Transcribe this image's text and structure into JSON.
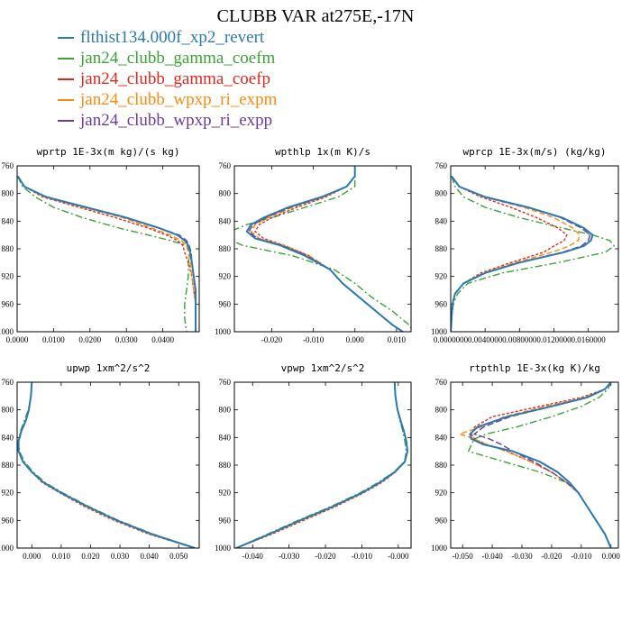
{
  "title": "CLUBB VAR at275E,-17N",
  "legend": [
    {
      "label": "flthist134.000f_xp2_revert",
      "color": "#2a7ab0",
      "dash": ""
    },
    {
      "label": "jan24_clubb_gamma_coefm",
      "color": "#3aa334",
      "dash": "8 3 2 3"
    },
    {
      "label": "jan24_clubb_gamma_coefp",
      "color": "#e2261f",
      "dash": "3 2"
    },
    {
      "label": "jan24_clubb_wpxp_ri_expm",
      "color": "#fb8a10",
      "dash": "6 3"
    },
    {
      "label": "jan24_clubb_wpxp_ri_expp",
      "color": "#6a3d9a",
      "dash": "7 3"
    }
  ],
  "chart_data": [
    {
      "type": "line",
      "title": "wprtp  1E-3x(m kg)/(s kg)",
      "xlim": [
        0,
        0.05
      ],
      "ylim": [
        760,
        1000
      ],
      "x_ticks": [
        0,
        0.01,
        0.02,
        0.03,
        0.04
      ],
      "x_tick_labels": [
        "0.0000",
        "0.0100",
        "0.0200",
        "0.0300",
        "0.0400"
      ],
      "y_ticks": [
        760,
        800,
        840,
        880,
        920,
        960,
        1000
      ],
      "y_tick_labels": [
        "760",
        "800",
        "840",
        "880",
        "920",
        "960",
        "1000"
      ],
      "levels": [
        775,
        790,
        805,
        820,
        835,
        850,
        860,
        868,
        875,
        885,
        900,
        920,
        940,
        960,
        980,
        1000
      ],
      "series": [
        {
          "values": [
            0.0002,
            0.002,
            0.008,
            0.019,
            0.03,
            0.039,
            0.044,
            0.046,
            0.047,
            0.0475,
            0.048,
            0.0485,
            0.049,
            0.049,
            0.049,
            0.049
          ]
        },
        {
          "values": [
            0.0001,
            0.0015,
            0.005,
            0.01,
            0.018,
            0.028,
            0.036,
            0.042,
            0.0465,
            0.0475,
            0.047,
            0.047,
            0.0465,
            0.046,
            0.046,
            0.0465
          ]
        },
        {
          "values": [
            0.0002,
            0.002,
            0.007,
            0.017,
            0.027,
            0.036,
            0.041,
            0.044,
            0.0455,
            0.046,
            0.047,
            0.048,
            0.0485,
            0.049,
            0.049,
            0.049
          ]
        },
        {
          "values": [
            0.0002,
            0.002,
            0.0075,
            0.018,
            0.029,
            0.037,
            0.042,
            0.045,
            0.0465,
            0.047,
            0.0475,
            0.048,
            0.0485,
            0.049,
            0.049,
            0.049
          ]
        },
        {
          "values": [
            0.0002,
            0.002,
            0.008,
            0.019,
            0.03,
            0.039,
            0.0445,
            0.0465,
            0.0472,
            0.0478,
            0.048,
            0.0485,
            0.049,
            0.049,
            0.049,
            0.049
          ]
        }
      ]
    },
    {
      "type": "line",
      "title": "wpthlp  1x(m K)/s",
      "xlim": [
        -0.029,
        0.0135
      ],
      "ylim": [
        760,
        1000
      ],
      "x_ticks": [
        -0.02,
        -0.01,
        0,
        0.01
      ],
      "x_tick_labels": [
        "-0.020",
        "-0.010",
        "0.000",
        "0.010"
      ],
      "y_ticks": [
        760,
        800,
        840,
        880,
        920,
        960,
        1000
      ],
      "y_tick_labels": [
        "760",
        "800",
        "840",
        "880",
        "920",
        "960",
        "1000"
      ],
      "levels": [
        760,
        775,
        790,
        805,
        820,
        835,
        845,
        855,
        865,
        875,
        890,
        910,
        930,
        950,
        970,
        990,
        1000
      ],
      "series": [
        {
          "values": [
            0,
            0,
            -0.002,
            -0.008,
            -0.016,
            -0.022,
            -0.025,
            -0.026,
            -0.024,
            -0.018,
            -0.012,
            -0.006,
            -0.003,
            0.001,
            0.005,
            0.009,
            0.0115
          ]
        },
        {
          "values": [
            0,
            0,
            0,
            -0.004,
            -0.012,
            -0.02,
            -0.026,
            -0.03,
            -0.031,
            -0.027,
            -0.015,
            -0.005,
            0.0,
            0.004,
            0.009,
            0.013,
            0.014
          ]
        },
        {
          "values": [
            0,
            0,
            -0.002,
            -0.007,
            -0.014,
            -0.02,
            -0.023,
            -0.024,
            -0.022,
            -0.017,
            -0.011,
            -0.006,
            -0.003,
            0.001,
            0.005,
            0.009,
            0.0115
          ]
        },
        {
          "values": [
            0,
            0,
            -0.002,
            -0.0075,
            -0.015,
            -0.021,
            -0.024,
            -0.025,
            -0.023,
            -0.017,
            -0.011,
            -0.006,
            -0.003,
            0.001,
            0.005,
            0.009,
            0.0115
          ]
        },
        {
          "values": [
            0,
            0,
            -0.002,
            -0.0078,
            -0.0155,
            -0.0215,
            -0.0245,
            -0.0255,
            -0.0235,
            -0.0175,
            -0.0115,
            -0.006,
            -0.003,
            0.001,
            0.005,
            0.009,
            0.0115
          ]
        }
      ]
    },
    {
      "type": "line",
      "title": "wprcp  1E-3x(m/s) (kg/kg)",
      "xlim": [
        0,
        0.0195
      ],
      "ylim": [
        760,
        1000
      ],
      "x_ticks": [
        0,
        0.004,
        0.008,
        0.012,
        0.016
      ],
      "x_tick_labels": [
        "0.0000000",
        "0.0040000",
        "0.0080000",
        "0.0120000",
        "0.0160000"
      ],
      "y_ticks": [
        760,
        800,
        840,
        880,
        920,
        960,
        1000
      ],
      "y_tick_labels": [
        "760",
        "800",
        "840",
        "880",
        "920",
        "960",
        "1000"
      ],
      "levels": [
        775,
        790,
        805,
        820,
        835,
        850,
        860,
        868,
        876,
        885,
        900,
        915,
        930,
        945,
        960,
        980,
        1000
      ],
      "series": [
        {
          "values": [
            0.0001,
            0.001,
            0.004,
            0.009,
            0.013,
            0.0155,
            0.0165,
            0.0163,
            0.0155,
            0.0132,
            0.008,
            0.004,
            0.0015,
            0.0005,
            0.0002,
            0.0001,
            0
          ]
        },
        {
          "values": [
            0.0001,
            0.0005,
            0.0015,
            0.004,
            0.008,
            0.013,
            0.0165,
            0.0185,
            0.019,
            0.018,
            0.0125,
            0.006,
            0.002,
            0.0008,
            0.0003,
            0.0001,
            0
          ]
        },
        {
          "values": [
            0.0001,
            0.001,
            0.0035,
            0.007,
            0.01,
            0.0125,
            0.0135,
            0.0132,
            0.012,
            0.0108,
            0.007,
            0.0035,
            0.0015,
            0.0005,
            0.0002,
            0.0001,
            0
          ]
        },
        {
          "values": [
            0.0001,
            0.001,
            0.0038,
            0.0085,
            0.012,
            0.0142,
            0.015,
            0.0148,
            0.0138,
            0.0118,
            0.0075,
            0.0038,
            0.0015,
            0.0005,
            0.0002,
            0.0001,
            0
          ]
        },
        {
          "values": [
            0.0001,
            0.001,
            0.004,
            0.009,
            0.0128,
            0.0152,
            0.0162,
            0.016,
            0.0152,
            0.013,
            0.0079,
            0.004,
            0.0015,
            0.0005,
            0.0002,
            0.0001,
            0
          ]
        }
      ]
    },
    {
      "type": "line",
      "title": "upwp  1xm^2/s^2",
      "xlim": [
        -0.005,
        0.057
      ],
      "ylim": [
        760,
        1000
      ],
      "x_ticks": [
        0,
        0.01,
        0.02,
        0.03,
        0.04,
        0.05
      ],
      "x_tick_labels": [
        "0.000",
        "0.010",
        "0.020",
        "0.030",
        "0.040",
        "0.050"
      ],
      "y_ticks": [
        760,
        800,
        840,
        880,
        920,
        960,
        1000
      ],
      "y_tick_labels": [
        "760",
        "800",
        "840",
        "880",
        "920",
        "960",
        "1000"
      ],
      "levels": [
        760,
        780,
        800,
        815,
        830,
        845,
        860,
        875,
        890,
        905,
        920,
        940,
        960,
        980,
        1000
      ],
      "series": [
        {
          "values": [
            0,
            -0.0003,
            -0.001,
            -0.002,
            -0.0035,
            -0.0045,
            -0.0045,
            -0.003,
            0.0,
            0.004,
            0.01,
            0.019,
            0.029,
            0.041,
            0.0555
          ]
        },
        {
          "values": [
            0,
            -0.0003,
            -0.0012,
            -0.0025,
            -0.0038,
            -0.0045,
            -0.0042,
            -0.0025,
            0.0005,
            0.0045,
            0.0105,
            0.0195,
            0.0295,
            0.0415,
            0.0555
          ]
        },
        {
          "values": [
            0,
            -0.0003,
            -0.001,
            -0.002,
            -0.0035,
            -0.0045,
            -0.0045,
            -0.003,
            0.0,
            0.0035,
            0.0095,
            0.018,
            0.028,
            0.04,
            0.0555
          ]
        },
        {
          "values": [
            0,
            -0.0003,
            -0.001,
            -0.002,
            -0.0035,
            -0.0045,
            -0.0045,
            -0.003,
            0.0,
            0.0038,
            0.0098,
            0.0185,
            0.0285,
            0.0405,
            0.0555
          ]
        },
        {
          "values": [
            0,
            -0.0003,
            -0.001,
            -0.002,
            -0.0035,
            -0.0045,
            -0.0045,
            -0.003,
            0.0,
            0.004,
            0.01,
            0.019,
            0.029,
            0.041,
            0.0555
          ]
        }
      ]
    },
    {
      "type": "line",
      "title": "vpwp  1xm^2/s^2",
      "xlim": [
        -0.045,
        0.0035
      ],
      "ylim": [
        760,
        1000
      ],
      "x_ticks": [
        -0.04,
        -0.03,
        -0.02,
        -0.01,
        0
      ],
      "x_tick_labels": [
        "-0.040",
        "-0.030",
        "-0.020",
        "-0.010",
        "-0.000"
      ],
      "y_ticks": [
        760,
        800,
        840,
        880,
        920,
        960,
        1000
      ],
      "y_tick_labels": [
        "760",
        "800",
        "840",
        "880",
        "920",
        "960",
        "1000"
      ],
      "levels": [
        760,
        780,
        800,
        815,
        830,
        845,
        860,
        875,
        890,
        905,
        920,
        940,
        960,
        980,
        1000
      ],
      "series": [
        {
          "values": [
            -0.001,
            -0.0008,
            -0.0002,
            0.0006,
            0.0015,
            0.0022,
            0.0025,
            0.0018,
            -0.001,
            -0.005,
            -0.01,
            -0.018,
            -0.027,
            -0.0355,
            -0.0445
          ]
        },
        {
          "values": [
            -0.001,
            -0.0008,
            -0.0002,
            0.0004,
            0.0012,
            0.0018,
            0.0022,
            0.0017,
            -0.0012,
            -0.0055,
            -0.0105,
            -0.0185,
            -0.0275,
            -0.036,
            -0.0445
          ]
        },
        {
          "values": [
            -0.001,
            -0.0008,
            -0.0002,
            0.0006,
            0.0015,
            0.0022,
            0.0025,
            0.0018,
            -0.0008,
            -0.0045,
            -0.0095,
            -0.0172,
            -0.026,
            -0.0348,
            -0.0445
          ]
        },
        {
          "values": [
            -0.001,
            -0.0008,
            -0.0002,
            0.0006,
            0.0015,
            0.0022,
            0.0025,
            0.0018,
            -0.0009,
            -0.0048,
            -0.0098,
            -0.0176,
            -0.0265,
            -0.0352,
            -0.0445
          ]
        },
        {
          "values": [
            -0.001,
            -0.0008,
            -0.0002,
            0.0006,
            0.0015,
            0.0022,
            0.0025,
            0.0018,
            -0.001,
            -0.005,
            -0.01,
            -0.018,
            -0.027,
            -0.0355,
            -0.0445
          ]
        }
      ]
    },
    {
      "type": "line",
      "title": "rtpthlp  1E-3x(kg K)/kg",
      "xlim": [
        -0.054,
        0.0025
      ],
      "ylim": [
        760,
        1000
      ],
      "x_ticks": [
        -0.05,
        -0.04,
        -0.03,
        -0.02,
        -0.01,
        0
      ],
      "x_tick_labels": [
        "-0.050",
        "-0.040",
        "-0.030",
        "-0.020",
        "-0.010",
        "0.000"
      ],
      "y_ticks": [
        760,
        800,
        840,
        880,
        920,
        960,
        1000
      ],
      "y_tick_labels": [
        "760",
        "800",
        "840",
        "880",
        "920",
        "960",
        "1000"
      ],
      "levels": [
        760,
        770,
        782,
        795,
        810,
        825,
        835,
        842,
        850,
        860,
        875,
        890,
        905,
        920,
        940,
        960,
        980,
        1000
      ],
      "series": [
        {
          "values": [
            0,
            -0.002,
            -0.008,
            -0.02,
            -0.035,
            -0.045,
            -0.0475,
            -0.047,
            -0.043,
            -0.033,
            -0.024,
            -0.018,
            -0.014,
            -0.011,
            -0.008,
            -0.005,
            -0.002,
            0
          ]
        },
        {
          "values": [
            0,
            -0.001,
            -0.004,
            -0.01,
            -0.02,
            -0.032,
            -0.042,
            -0.046,
            -0.047,
            -0.048,
            -0.036,
            -0.024,
            -0.015,
            -0.011,
            -0.008,
            -0.005,
            -0.002,
            0
          ]
        },
        {
          "values": [
            0,
            -0.002,
            -0.01,
            -0.024,
            -0.04,
            -0.046,
            -0.047,
            -0.046,
            -0.042,
            -0.035,
            -0.027,
            -0.02,
            -0.015,
            -0.011,
            -0.008,
            -0.005,
            -0.002,
            0
          ]
        },
        {
          "values": [
            0,
            -0.002,
            -0.009,
            -0.022,
            -0.036,
            -0.044,
            -0.051,
            -0.046,
            -0.042,
            -0.035,
            -0.027,
            -0.02,
            -0.015,
            -0.011,
            -0.008,
            -0.005,
            -0.002,
            0
          ]
        },
        {
          "values": [
            0,
            -0.002,
            -0.008,
            -0.02,
            -0.034,
            -0.043,
            -0.046,
            -0.041,
            -0.037,
            -0.033,
            -0.026,
            -0.02,
            -0.015,
            -0.011,
            -0.008,
            -0.005,
            -0.002,
            0
          ]
        }
      ]
    }
  ]
}
